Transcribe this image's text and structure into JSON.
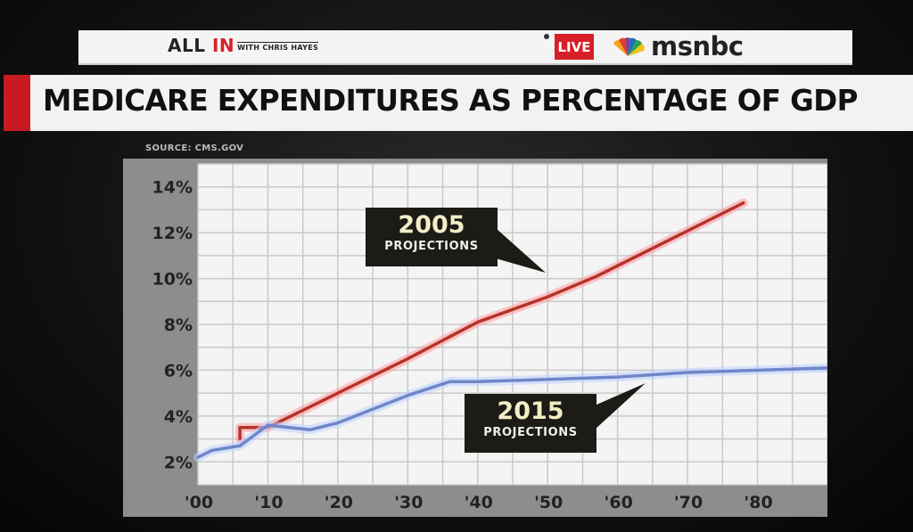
{
  "header": {
    "show_name_prefix": "ALL ",
    "show_name_accent": "IN",
    "show_host": "WITH CHRIS HAYES",
    "live_label": "LIVE",
    "network_logo_icon": "peacock-icon",
    "network": "msnbc"
  },
  "title": "MEDICARE EXPENDITURES AS PERCENTAGE OF GDP",
  "source": "SOURCE: CMS.GOV",
  "callouts": {
    "p2005": {
      "year": "2005",
      "label": "PROJECTIONS"
    },
    "p2015": {
      "year": "2015",
      "label": "PROJECTIONS"
    }
  },
  "colors": {
    "accent_red": "#c91a22",
    "series_2005": "#b5332c",
    "series_2005_glow": "#ff9a9a",
    "series_2015": "#6f86c8",
    "series_2015_glow": "#bcd0ff",
    "plot_bg": "#f4f4f4",
    "grid": "#c9c9c9",
    "panel": "#8d8d8d"
  },
  "chart_data": {
    "type": "line",
    "title": "MEDICARE EXPENDITURES AS PERCENTAGE OF GDP",
    "xlabel": "",
    "ylabel": "",
    "xlim": [
      2000,
      2090
    ],
    "ylim": [
      1,
      15
    ],
    "x_ticks": [
      2000,
      2010,
      2020,
      2030,
      2040,
      2050,
      2060,
      2070,
      2080
    ],
    "x_tick_labels": [
      "'00",
      "'10",
      "'20",
      "'30",
      "'40",
      "'50",
      "'60",
      "'70",
      "'80"
    ],
    "y_ticks": [
      2,
      4,
      6,
      8,
      10,
      12,
      14
    ],
    "y_tick_labels": [
      "2%",
      "4%",
      "6%",
      "8%",
      "10%",
      "12%",
      "14%"
    ],
    "grid": true,
    "series": [
      {
        "name": "2005 PROJECTIONS",
        "x": [
          2006,
          2006,
          2010,
          2020,
          2030,
          2040,
          2050,
          2057,
          2078
        ],
        "y": [
          3.0,
          3.5,
          3.5,
          5.0,
          6.5,
          8.1,
          9.2,
          10.1,
          13.3
        ]
      },
      {
        "name": "2015 PROJECTIONS",
        "x": [
          2000,
          2002,
          2006,
          2010,
          2016,
          2020,
          2030,
          2036,
          2040,
          2050,
          2060,
          2070,
          2090
        ],
        "y": [
          2.2,
          2.5,
          2.7,
          3.6,
          3.4,
          3.7,
          4.9,
          5.5,
          5.5,
          5.6,
          5.7,
          5.9,
          6.1
        ]
      }
    ]
  }
}
